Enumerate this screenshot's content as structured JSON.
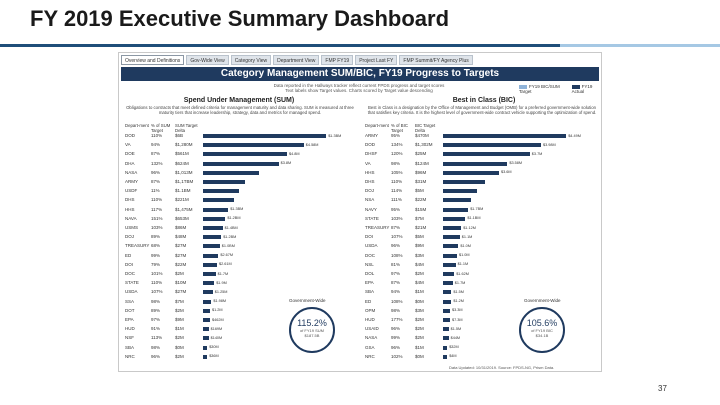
{
  "slide": {
    "title": "FY 2019 Executive Summary Dashboard",
    "page_number": "37"
  },
  "colors": {
    "navy": "#1f3a5f",
    "bar_blue": "#1f3a5f",
    "rule_dark": "#1f4e79",
    "rule_light": "#a5c8e4"
  },
  "tabs": [
    "Overview and Definitions",
    "Gov-Wide View",
    "Category View",
    "Department View",
    "FMP FY19",
    "Project Last FY",
    "FMP Summit/FY Agency Plus"
  ],
  "banner": "Category Management SUM/BIC, FY19 Progress to Targets",
  "notes": [
    "Data reported in the Hallways tracker reflect current FPDS progress and target scores",
    "Text labels show Target values. Charts scored by Target value descending"
  ],
  "legend": {
    "target": "FY19 BIC/SUM Target",
    "actual": "FY19 Actual"
  },
  "sum_panel": {
    "title": "Spend Under Management (SUM)",
    "description": "Obligations to contracts that meet defined criteria for management maturity and data sharing. SUM is measured at three maturity tiers that increase leadership, strategy, data and metrics for managed spend.",
    "headers": [
      "Depart-ment",
      "% of SUM Target",
      "SUM Target Delta"
    ],
    "rows": [
      {
        "dept": "DOD",
        "pct": "110%",
        "delta": "$6B",
        "value": 88,
        "label": "$1.3BM"
      },
      {
        "dept": "VA",
        "pct": "94%",
        "delta": "$1,280M",
        "value": 72,
        "label": "$4.58M"
      },
      {
        "dept": "DOE",
        "pct": "87%",
        "delta": "$561M",
        "value": 60,
        "label": "$4.8M"
      },
      {
        "dept": "DHA",
        "pct": "132%",
        "delta": "$624M",
        "value": 54,
        "label": "$3.8M"
      },
      {
        "dept": "NASA",
        "pct": "96%",
        "delta": "$1,013M",
        "value": 40,
        "label": ""
      },
      {
        "dept": "ARMY",
        "pct": "87%",
        "delta": "$1,1TBM",
        "value": 30,
        "label": ""
      },
      {
        "dept": "USDF",
        "pct": "11%",
        "delta": "$1.1BM",
        "value": 26,
        "label": ""
      },
      {
        "dept": "DHS",
        "pct": "110%",
        "delta": "$221M",
        "value": 22,
        "label": ""
      },
      {
        "dept": "HHS",
        "pct": "117%",
        "delta": "$1,475M",
        "value": 18,
        "label": "$1.3BM"
      },
      {
        "dept": "NAVA",
        "pct": "151%",
        "delta": "$653M",
        "value": 16,
        "label": "$1.2BM"
      },
      {
        "dept": "USMS",
        "pct": "103%",
        "delta": "$86M",
        "value": 14,
        "label": "$1.4BM"
      },
      {
        "dept": "DOJ",
        "pct": "89%",
        "delta": "$48M",
        "value": 13,
        "label": "$1.2BM"
      },
      {
        "dept": "TREASURY",
        "pct": "68%",
        "delta": "$27M",
        "value": 12,
        "label": "$1.0BM"
      },
      {
        "dept": "ED",
        "pct": "99%",
        "delta": "$27M",
        "value": 11,
        "label": "$2.67M"
      },
      {
        "dept": "DOI",
        "pct": "79%",
        "delta": "$22M",
        "value": 10,
        "label": "$2.61M"
      },
      {
        "dept": "DOC",
        "pct": "101%",
        "delta": "$2M",
        "value": 9,
        "label": "$1.7M"
      },
      {
        "dept": "STATE",
        "pct": "110%",
        "delta": "$10M",
        "value": 8,
        "label": "$1.9M"
      },
      {
        "dept": "USDA",
        "pct": "107%",
        "delta": "$27M",
        "value": 7,
        "label": "$1.25M"
      },
      {
        "dept": "SSA",
        "pct": "98%",
        "delta": "$7M",
        "value": 6,
        "label": "$1.98M"
      },
      {
        "dept": "DOT",
        "pct": "89%",
        "delta": "$2M",
        "value": 5,
        "label": "$1.2M"
      },
      {
        "dept": "EPA",
        "pct": "97%",
        "delta": "$9M",
        "value": 5,
        "label": "$462M"
      },
      {
        "dept": "HUD",
        "pct": "91%",
        "delta": "$1M",
        "value": 4,
        "label": "$169M"
      },
      {
        "dept": "NSF",
        "pct": "113%",
        "delta": "$2M",
        "value": 4,
        "label": "$140M"
      },
      {
        "dept": "SBA",
        "pct": "98%",
        "delta": "$0M",
        "value": 3,
        "label": "$30M"
      },
      {
        "dept": "NRC",
        "pct": "96%",
        "delta": "$2M",
        "value": 3,
        "label": "$36M"
      }
    ],
    "gov_label": "Government-Wide",
    "gov_pct": "115.2%",
    "gov_sub1": "of FY19 SUM",
    "gov_sub2": "$187.5B"
  },
  "bic_panel": {
    "title": "Best in Class (BIC)",
    "description": "Best in Class is a designation by the Office of Management and Budget (OMB) for a preferred government-wide solution that satisfies key criteria. It is the highest level of government-wide contract vehicle supporting the optimization of spend.",
    "headers": [
      "Depart-ment",
      "% of BIC Target",
      "BIC Target Delta"
    ],
    "rows": [
      {
        "dept": "ARMY",
        "pct": "95%",
        "delta": "$470M",
        "value": 88,
        "label": "$4.49M"
      },
      {
        "dept": "DOD",
        "pct": "134%",
        "delta": "$1,302M",
        "value": 70,
        "label": "$3.98M"
      },
      {
        "dept": "DHSF",
        "pct": "120%",
        "delta": "$25M",
        "value": 62,
        "label": "$3.7M"
      },
      {
        "dept": "VA",
        "pct": "98%",
        "delta": "$124M",
        "value": 46,
        "label": "$3.58M"
      },
      {
        "dept": "HHS",
        "pct": "105%",
        "delta": "$96M",
        "value": 40,
        "label": "$3.6M"
      },
      {
        "dept": "DHS",
        "pct": "110%",
        "delta": "$31M",
        "value": 30,
        "label": ""
      },
      {
        "dept": "DOJ",
        "pct": "114%",
        "delta": "$5M",
        "value": 24,
        "label": ""
      },
      {
        "dept": "NSA",
        "pct": "111%",
        "delta": "$22M",
        "value": 20,
        "label": ""
      },
      {
        "dept": "NAVY",
        "pct": "95%",
        "delta": "$15M",
        "value": 18,
        "label": "$1.7BM"
      },
      {
        "dept": "STATE",
        "pct": "103%",
        "delta": "$7M",
        "value": 16,
        "label": "$1.1BM"
      },
      {
        "dept": "TREASURY",
        "pct": "87%",
        "delta": "$21M",
        "value": 13,
        "label": "$1.12M"
      },
      {
        "dept": "DOI",
        "pct": "107%",
        "delta": "$5M",
        "value": 12,
        "label": "$1.1M"
      },
      {
        "dept": "USDA",
        "pct": "96%",
        "delta": "$9M",
        "value": 11,
        "label": "$1.0M"
      },
      {
        "dept": "DOC",
        "pct": "108%",
        "delta": "$3M",
        "value": 10,
        "label": "$1.0M"
      },
      {
        "dept": "NSL",
        "pct": "81%",
        "delta": "$4M",
        "value": 9,
        "label": "$1.1M"
      },
      {
        "dept": "DOL",
        "pct": "97%",
        "delta": "$2M",
        "value": 8,
        "label": "$1.62M"
      },
      {
        "dept": "EPA",
        "pct": "87%",
        "delta": "$4M",
        "value": 7,
        "label": "$1.7M"
      },
      {
        "dept": "SBA",
        "pct": "94%",
        "delta": "$1M",
        "value": 6,
        "label": "$1.5M"
      },
      {
        "dept": "ED",
        "pct": "108%",
        "delta": "$0M",
        "value": 6,
        "label": "$1.2M"
      },
      {
        "dept": "OPM",
        "pct": "98%",
        "delta": "$3M",
        "value": 5,
        "label": "$3.3M"
      },
      {
        "dept": "HUD",
        "pct": "177%",
        "delta": "$2M",
        "value": 5,
        "label": "$7.3M"
      },
      {
        "dept": "USAID",
        "pct": "96%",
        "delta": "$2M",
        "value": 4,
        "label": "$1.5M"
      },
      {
        "dept": "NASA",
        "pct": "99%",
        "delta": "$2M",
        "value": 4,
        "label": "$44M"
      },
      {
        "dept": "GSA",
        "pct": "96%",
        "delta": "$1M",
        "value": 3,
        "label": "$32M"
      },
      {
        "dept": "NRC",
        "pct": "102%",
        "delta": "$0M",
        "value": 3,
        "label": "$4M"
      }
    ],
    "gov_label": "Government-Wide",
    "gov_pct": "105.6%",
    "gov_sub1": "of FY19 BIC",
    "gov_sub2": "$34.1B"
  },
  "footnote": "Data Updated: 10/31/2019. Source: FPDS-NG, Prism Data."
}
